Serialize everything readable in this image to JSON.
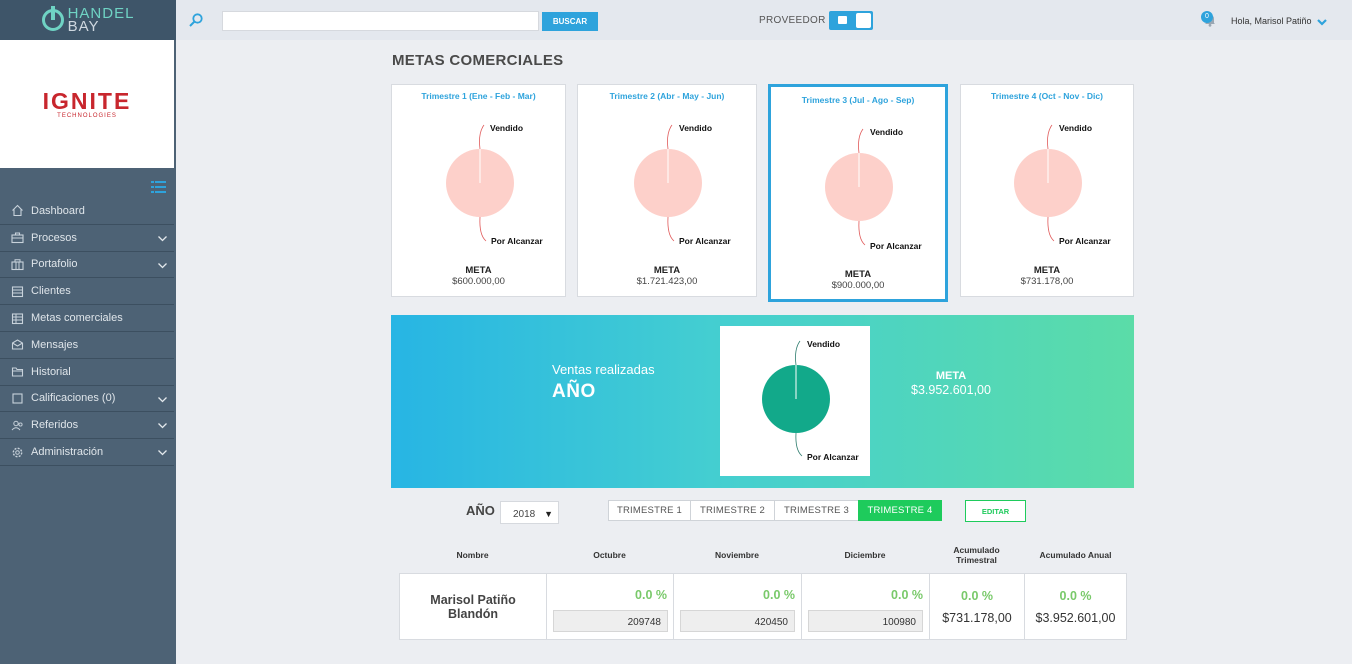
{
  "header": {
    "logo_line1": "HANDEL",
    "logo_line2": "BAY",
    "search_placeholder": "",
    "search_button": "BUSCAR",
    "provider_label": "PROVEEDOR",
    "notifications_count": "0",
    "greeting": "Hola, Marisol Patiño"
  },
  "brand": {
    "name": "IGNITE",
    "sub": "TECHNOLOGIES"
  },
  "sidebar": {
    "items": [
      {
        "label": "Dashboard",
        "icon": "home-icon",
        "chevron": false
      },
      {
        "label": "Procesos",
        "icon": "briefcase-icon",
        "chevron": true
      },
      {
        "label": "Portafolio",
        "icon": "portfolio-icon",
        "chevron": true
      },
      {
        "label": "Clientes",
        "icon": "building-icon",
        "chevron": false
      },
      {
        "label": "Metas comerciales",
        "icon": "target-icon",
        "chevron": false
      },
      {
        "label": "Mensajes",
        "icon": "mail-icon",
        "chevron": false
      },
      {
        "label": "Historial",
        "icon": "folder-icon",
        "chevron": false
      },
      {
        "label": "Calificaciones (0)",
        "icon": "checkbox-icon",
        "chevron": true
      },
      {
        "label": "Referidos",
        "icon": "users-icon",
        "chevron": true
      },
      {
        "label": "Administración",
        "icon": "gear-icon",
        "chevron": true
      }
    ]
  },
  "page_title": "METAS COMERCIALES",
  "quarters": [
    {
      "title": "Trimestre 1 (Ene - Feb - Mar)",
      "vendido_label": "Vendido",
      "por_alcanzar_label": "Por Alcanzar",
      "meta_label": "META",
      "meta_value": "$600.000,00",
      "active": false
    },
    {
      "title": "Trimestre 2 (Abr - May - Jun)",
      "vendido_label": "Vendido",
      "por_alcanzar_label": "Por Alcanzar",
      "meta_label": "META",
      "meta_value": "$1.721.423,00",
      "active": false
    },
    {
      "title": "Trimestre 3 (Jul - Ago - Sep)",
      "vendido_label": "Vendido",
      "por_alcanzar_label": "Por Alcanzar",
      "meta_label": "META",
      "meta_value": "$900.000,00",
      "active": true
    },
    {
      "title": "Trimestre 4 (Oct - Nov - Dic)",
      "vendido_label": "Vendido",
      "por_alcanzar_label": "Por Alcanzar",
      "meta_label": "META",
      "meta_value": "$731.178,00",
      "active": false
    }
  ],
  "year_banner": {
    "subtitle": "Ventas realizadas",
    "title": "AÑO",
    "vendido_label": "Vendido",
    "por_alcanzar_label": "Por Alcanzar",
    "meta_label": "META",
    "meta_value": "$3.952.601,00"
  },
  "colors": {
    "accent": "#2ea3dc",
    "green": "#1ecb5c",
    "pie_quarter": "#fdd0ca",
    "pie_year": "#12a98a",
    "percent": "#79c96a"
  },
  "filters": {
    "year_label": "AÑO",
    "year_value": "2018",
    "tabs": [
      "TRIMESTRE 1",
      "TRIMESTRE 2",
      "TRIMESTRE 3",
      "TRIMESTRE 4"
    ],
    "selected_tab": "TRIMESTRE 4",
    "edit_button": "EDITAR"
  },
  "table": {
    "headers": {
      "nombre": "Nombre",
      "octubre": "Octubre",
      "noviembre": "Noviembre",
      "diciembre": "Diciembre",
      "acum_trim_1": "Acumulado",
      "acum_trim_2": "Trimestral",
      "acum_anual": "Acumulado Anual"
    },
    "row": {
      "name_line1": "Marisol Patiño",
      "name_line2": "Blandón",
      "octubre_pct": "0.0 %",
      "octubre_val": "209748",
      "noviembre_pct": "0.0 %",
      "noviembre_val": "420450",
      "diciembre_pct": "0.0 %",
      "diciembre_val": "100980",
      "acum_trim_pct": "0.0 %",
      "acum_trim_val": "$731.178,00",
      "acum_anual_pct": "0.0 %",
      "acum_anual_val": "$3.952.601,00"
    }
  }
}
